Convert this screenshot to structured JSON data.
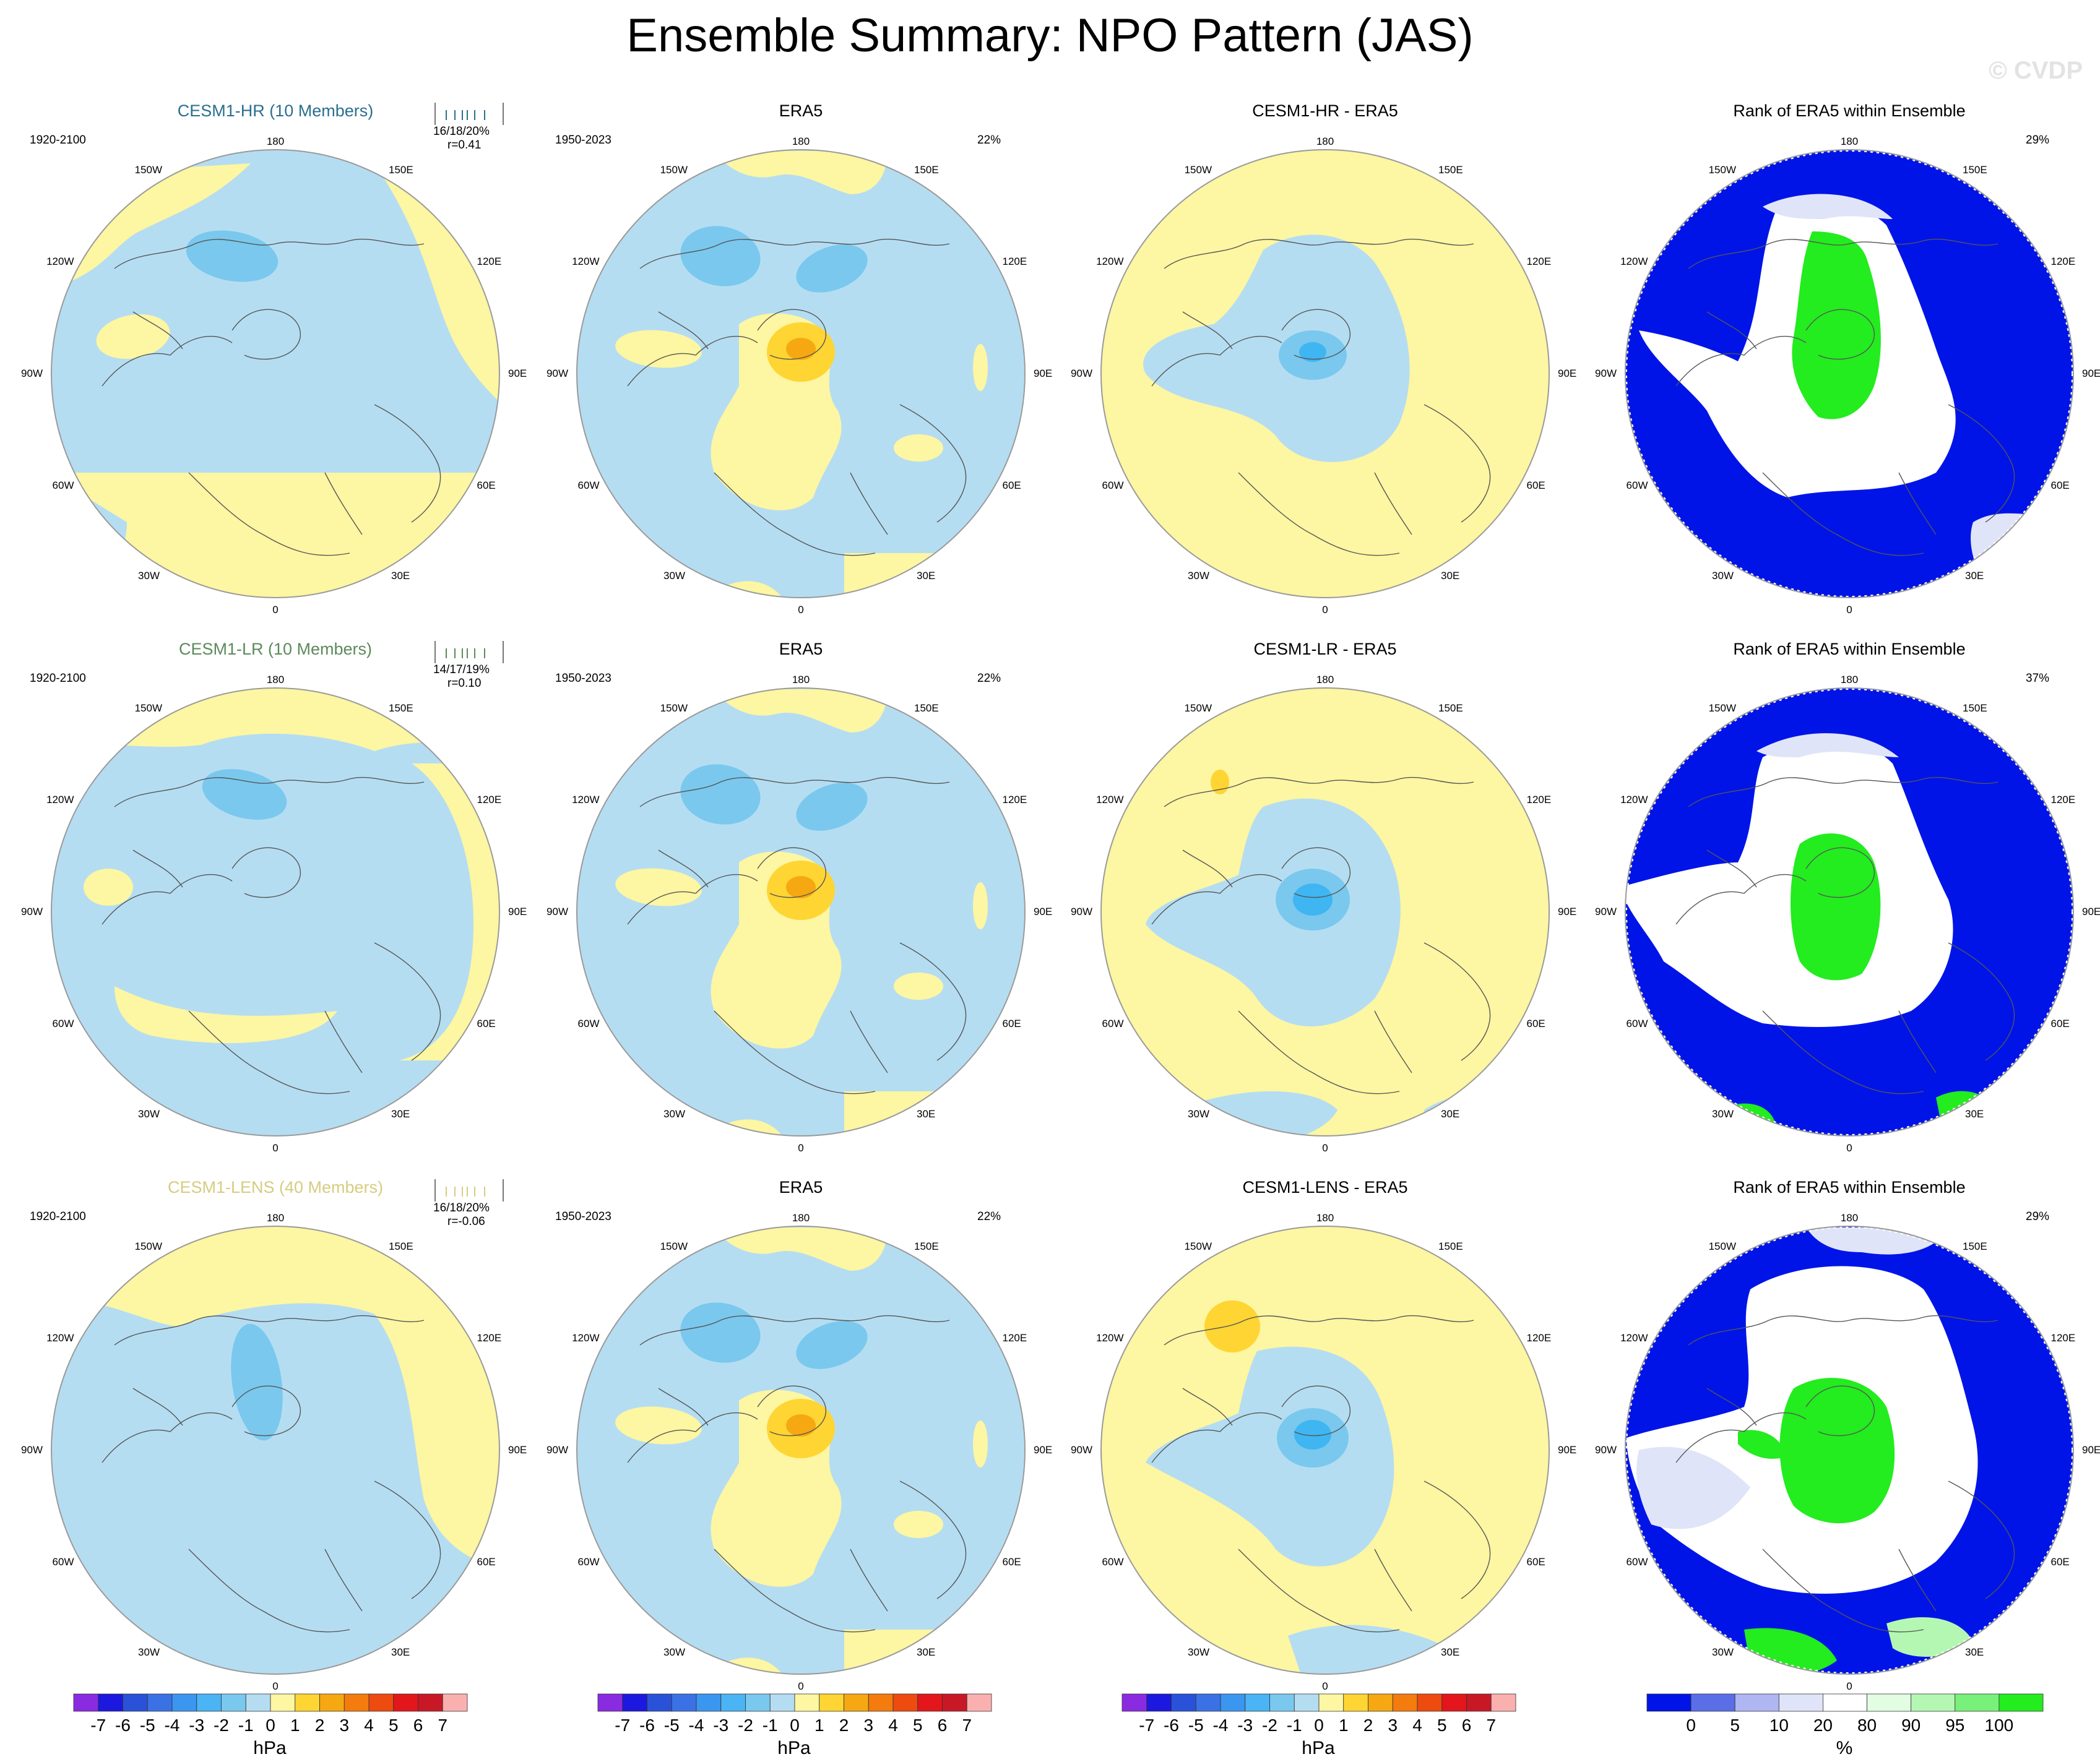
{
  "page_title": "Ensemble Summary: NPO Pattern (JAS)",
  "watermark": "© CVDP",
  "colors": {
    "yellow": "#fdf6a2",
    "light_blue": "#b5ddf2",
    "blue1": "#7ac8ee",
    "blue2": "#3fb6f1",
    "orange1": "#fed533",
    "orange2": "#f6a812",
    "rank_dark_blue": "#0014e8",
    "rank_green": "#23ec1f",
    "rank_lavender": "#e0e4f8"
  },
  "longitude_labels": [
    "180",
    "150E",
    "120E",
    "90E",
    "60E",
    "30E",
    "0",
    "30W",
    "60W",
    "90W",
    "120W",
    "150W"
  ],
  "rows": [
    {
      "model": {
        "title": "CESM1-HR (10 Members)",
        "title_color": "#2a6f8e",
        "period": "1920-2100",
        "pct": "16/18/20%",
        "corr": "r=0.41"
      },
      "era5": {
        "title": "ERA5",
        "period": "1950-2023",
        "pct": "22%"
      },
      "diff": {
        "title": "CESM1-HR - ERA5"
      },
      "rank": {
        "title": "Rank of ERA5 within Ensemble",
        "pct": "29%"
      }
    },
    {
      "model": {
        "title": "CESM1-LR (10 Members)",
        "title_color": "#5c8a5a",
        "period": "1920-2100",
        "pct": "14/17/19%",
        "corr": "r=0.10"
      },
      "era5": {
        "title": "ERA5",
        "period": "1950-2023",
        "pct": "22%"
      },
      "diff": {
        "title": "CESM1-LR - ERA5"
      },
      "rank": {
        "title": "Rank of ERA5 within Ensemble",
        "pct": "37%"
      }
    },
    {
      "model": {
        "title": "CESM1-LENS (40 Members)",
        "title_color": "#d6cc80",
        "period": "1920-2100",
        "pct": "16/18/20%",
        "corr": "r=-0.06"
      },
      "era5": {
        "title": "ERA5",
        "period": "1950-2023",
        "pct": "22%"
      },
      "diff": {
        "title": "CESM1-LENS - ERA5"
      },
      "rank": {
        "title": "Rank of ERA5 within Ensemble",
        "pct": "29%"
      }
    }
  ],
  "colorbars": {
    "hpa": {
      "unit": "hPa",
      "ticks": [
        "-7",
        "-6",
        "-5",
        "-4",
        "-3",
        "-2",
        "-1",
        "0",
        "1",
        "2",
        "3",
        "4",
        "5",
        "6",
        "7"
      ],
      "colors": [
        "#8a2be2",
        "#1c18e0",
        "#2a52d8",
        "#3a72e6",
        "#3b96f0",
        "#4ab4f4",
        "#7ac8ee",
        "#b5ddf2",
        "#fdf6a2",
        "#fed533",
        "#f6a812",
        "#f47b0e",
        "#ee4b10",
        "#e3161c",
        "#c81826",
        "#fbb0b0"
      ]
    },
    "rank": {
      "unit": "%",
      "ticks": [
        "0",
        "5",
        "10",
        "20",
        "80",
        "90",
        "95",
        "100"
      ],
      "colors": [
        "#0014e8",
        "#5a6ee8",
        "#b0b6f2",
        "#e0e4f8",
        "#ffffff",
        "#e2fde2",
        "#b4f7b2",
        "#78f07a",
        "#23ec1f"
      ]
    }
  }
}
